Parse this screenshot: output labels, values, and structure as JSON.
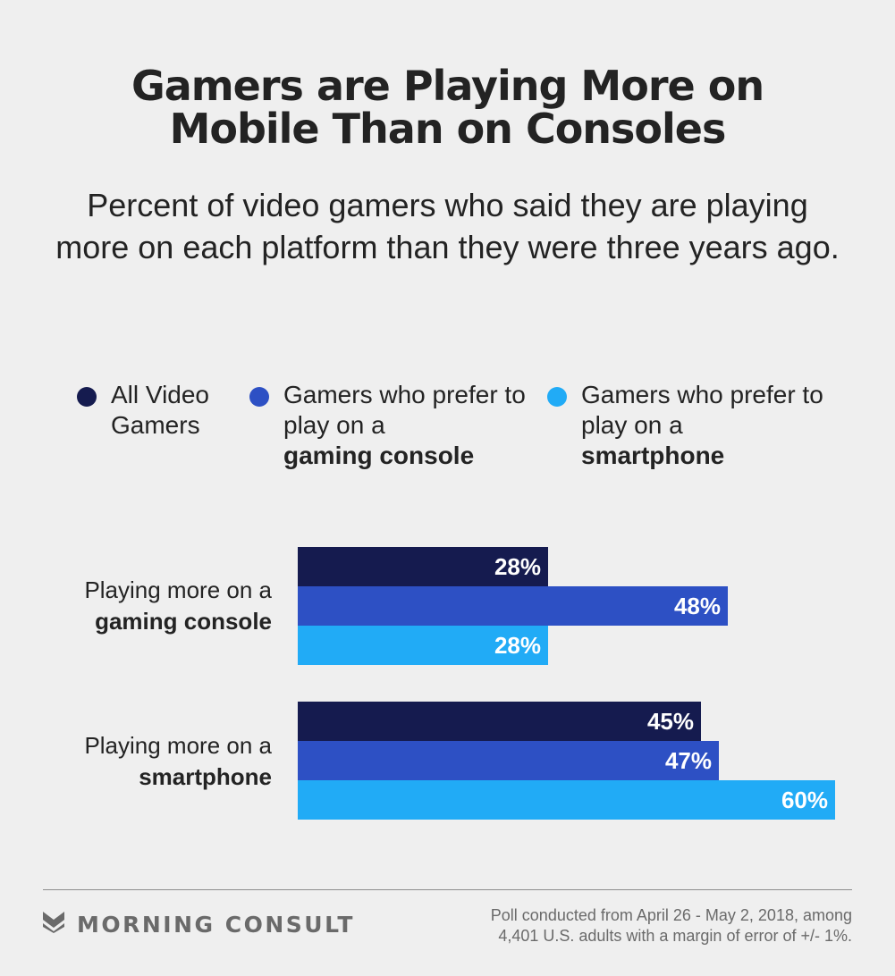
{
  "chart_data": {
    "type": "bar",
    "orientation": "horizontal",
    "title": "Gamers are Playing More on Mobile Than on Consoles",
    "subtitle": "Percent of video gamers who said they are playing more on each platform than they were three years ago.",
    "categories": [
      {
        "prefix": "Playing more on a",
        "emphasis": "gaming console"
      },
      {
        "prefix": "Playing more on a",
        "emphasis": "smartphone"
      }
    ],
    "series": [
      {
        "name": "All Video Gamers",
        "legend_prefix": "All Video Gamers",
        "legend_emphasis": "",
        "color": "#151b4f",
        "values": [
          28,
          45
        ]
      },
      {
        "name": "Gamers who prefer to play on a gaming console",
        "legend_prefix": "Gamers who prefer to play on a",
        "legend_emphasis": "gaming console",
        "color": "#2d50c4",
        "values": [
          48,
          47
        ]
      },
      {
        "name": "Gamers who prefer to play on a smartphone",
        "legend_prefix": "Gamers who prefer to play on a",
        "legend_emphasis": "smartphone",
        "color": "#21abf6",
        "values": [
          28,
          60
        ]
      }
    ],
    "value_suffix": "%",
    "xlim": [
      0,
      60
    ],
    "grid": false,
    "legend_position": "top"
  },
  "footer": {
    "brand": "MORNING CONSULT",
    "note_line1": "Poll conducted from April 26 - May 2, 2018, among",
    "note_line2": "4,401 U.S. adults with a margin of error of +/- 1%."
  }
}
